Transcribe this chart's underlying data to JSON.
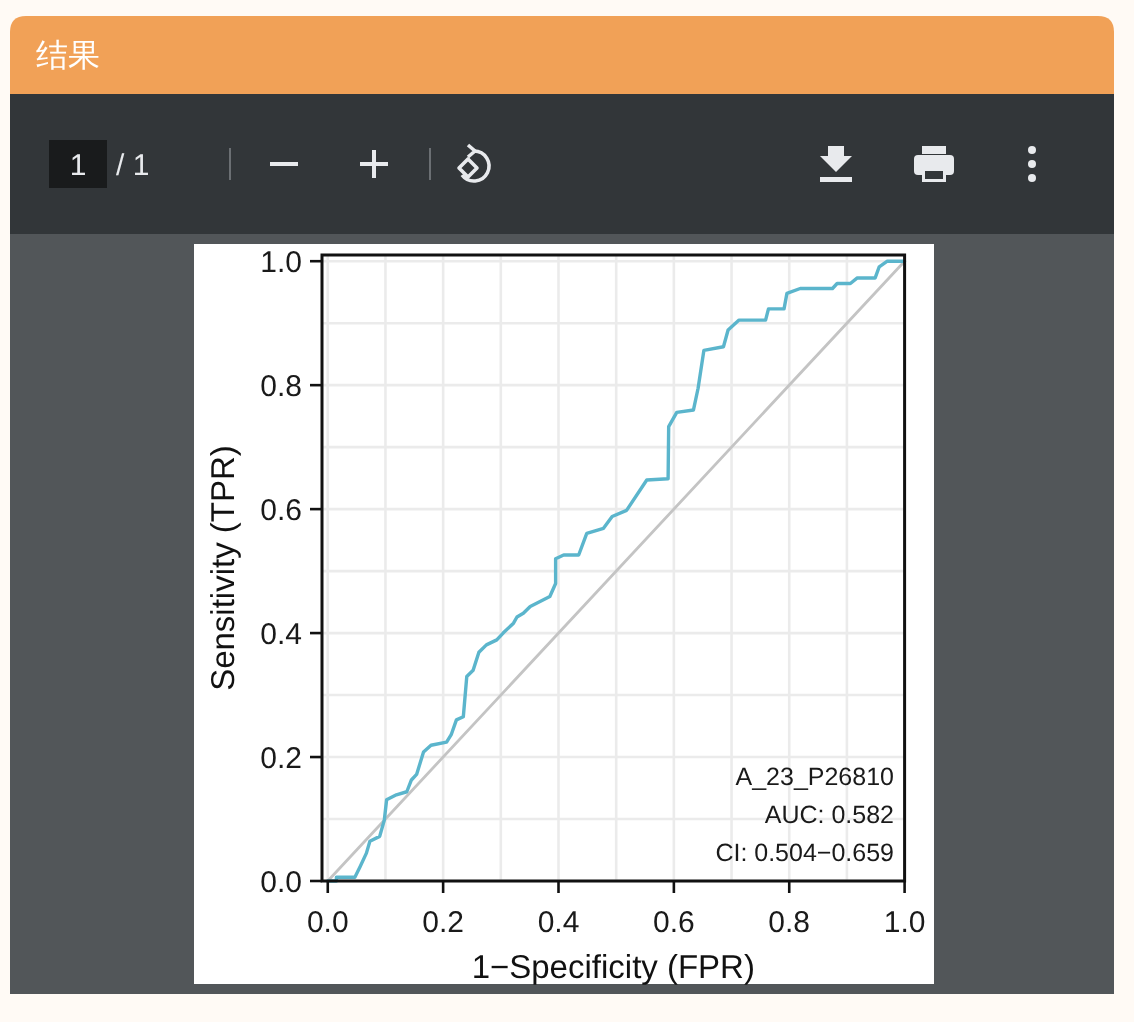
{
  "chart_data": {
    "type": "line",
    "title": "结果",
    "xlabel": "1−Specificity (FPR)",
    "ylabel": "Sensitivity (TPR)",
    "annotations": [
      "1",
      "/ 1",
      "A_23_P26810",
      "AUC: 0.582",
      "CI: 0.504−0.659"
    ],
    "xlim": [
      -0.01,
      1
    ],
    "ylim": [
      0,
      1.01
    ],
    "xticks": [
      {
        "value": 0,
        "label": "0.0"
      },
      0.2,
      0.4,
      0.6,
      0.8,
      {
        "value": 1,
        "label": "1.0"
      }
    ],
    "yticks": [
      {
        "value": 0,
        "label": "0.0"
      },
      0.2,
      0.4,
      0.6,
      0.8,
      {
        "value": 1,
        "label": "1.0"
      }
    ],
    "grid": true,
    "series": [
      {
        "color": "#c4c4c4",
        "x": [
          0,
          1
        ],
        "values": [
          0,
          1
        ]
      },
      {
        "color": "#5bb5cc",
        "x": [
          0,
          0.015,
          0.015,
          0.047,
          0.056,
          0.067,
          0.073,
          0.09,
          0.098,
          0.102,
          0.119,
          0.137,
          0.145,
          0.154,
          0.16,
          0.166,
          0.179,
          0.206,
          0.214,
          0.223,
          0.235,
          0.241,
          0.252,
          0.262,
          0.275,
          0.293,
          0.304,
          0.322,
          0.328,
          0.339,
          0.351,
          0.385,
          0.395,
          0.395,
          0.409,
          0.435,
          0.449,
          0.478,
          0.493,
          0.518,
          0.553,
          0.59,
          0.591,
          0.605,
          0.634,
          0.642,
          0.652,
          0.686,
          0.694,
          0.713,
          0.759,
          0.764,
          0.791,
          0.796,
          0.819,
          0.875,
          0.883,
          0.906,
          0.918,
          0.949,
          0.956,
          0.97,
          1
        ],
        "values": [
          0,
          0,
          0.006,
          0.006,
          0.023,
          0.045,
          0.064,
          0.072,
          0.098,
          0.131,
          0.139,
          0.144,
          0.163,
          0.172,
          0.19,
          0.208,
          0.219,
          0.224,
          0.236,
          0.26,
          0.265,
          0.33,
          0.34,
          0.369,
          0.381,
          0.389,
          0.4,
          0.416,
          0.426,
          0.432,
          0.443,
          0.459,
          0.48,
          0.52,
          0.526,
          0.526,
          0.561,
          0.569,
          0.588,
          0.598,
          0.647,
          0.649,
          0.733,
          0.756,
          0.76,
          0.795,
          0.856,
          0.862,
          0.889,
          0.905,
          0.905,
          0.923,
          0.923,
          0.948,
          0.956,
          0.956,
          0.964,
          0.964,
          0.973,
          0.973,
          0.991,
          1,
          1
        ]
      }
    ]
  }
}
